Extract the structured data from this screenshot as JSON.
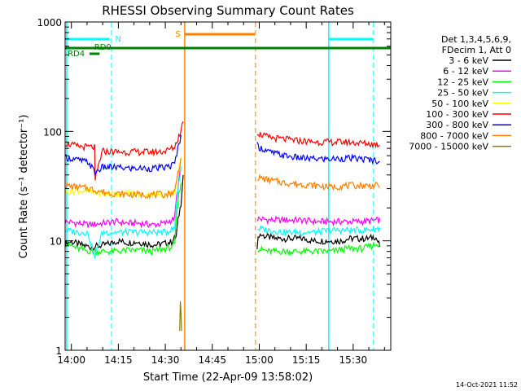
{
  "chart_data": {
    "type": "line",
    "title": "RHESSI Observing Summary Count Rates",
    "xlabel": "Start Time (22-Apr-09 13:58:02)",
    "ylabel": "Count Rate (s⁻¹ detector⁻¹)",
    "x_unit": "minutes since 13:58:02",
    "xlim": [
      0,
      104
    ],
    "ylim": [
      1,
      1000
    ],
    "yscale": "log",
    "x_ticks": [
      "14:00",
      "14:15",
      "14:30",
      "14:45",
      "15:00",
      "15:15",
      "15:30"
    ],
    "x_tick_values": [
      2,
      17,
      32,
      47,
      62,
      77,
      92
    ],
    "y_ticks": [
      "1",
      "10",
      "100",
      "1000"
    ],
    "y_tick_values": [
      1,
      10,
      100,
      1000
    ],
    "legend_header": [
      "Det 1,3,4,5,6,9,",
      "FDecim 1, Att 0"
    ],
    "legend_position": "right",
    "data_gap": [
      38,
      61
    ],
    "series": [
      {
        "name": "3 - 6 keV",
        "color": "#000000",
        "x": [
          0,
          2,
          5,
          8,
          11,
          14,
          17,
          20,
          23,
          26,
          29,
          32,
          34,
          35.5,
          37,
          37.7,
          61.3,
          62,
          64,
          67,
          70,
          73,
          76,
          79,
          82,
          85,
          88,
          91,
          94,
          97,
          99,
          100.5
        ],
        "y": [
          9.5,
          9.8,
          9.2,
          8.8,
          9.0,
          9.4,
          10.0,
          9.6,
          9.8,
          9.4,
          9.2,
          9.5,
          9.8,
          11,
          22,
          40,
          9.0,
          11.5,
          11,
          10.5,
          10.5,
          10.5,
          10.5,
          10,
          10,
          10,
          10,
          10.5,
          10.5,
          10.5,
          11,
          9
        ]
      },
      {
        "name": "6 - 12 keV",
        "color": "#ff00ff",
        "x": [
          0,
          4,
          8,
          12,
          16,
          20,
          24,
          28,
          32,
          35,
          37,
          61.5,
          65,
          70,
          75,
          80,
          85,
          90,
          95,
          100.5
        ],
        "y": [
          15,
          14.5,
          14,
          14.5,
          15,
          14.5,
          14.5,
          14,
          14.5,
          16,
          45,
          16,
          15.5,
          15.5,
          15.5,
          15,
          15,
          15,
          15,
          15.5
        ]
      },
      {
        "name": "12 - 25 keV",
        "color": "#00ff00",
        "x": [
          0,
          4,
          8,
          12,
          16,
          20,
          24,
          28,
          32,
          35,
          37,
          61.5,
          65,
          70,
          75,
          80,
          85,
          90,
          95,
          100.5
        ],
        "y": [
          9.5,
          8.5,
          8,
          8,
          8,
          8.2,
          8.2,
          8.0,
          8.5,
          9,
          35,
          8.5,
          8,
          8,
          8,
          8,
          8,
          8.5,
          8.5,
          9.5
        ]
      },
      {
        "name": "25 - 50 keV",
        "color": "#00ffff",
        "x": [
          0,
          4,
          7,
          9.5,
          12,
          16,
          20,
          24,
          28,
          32,
          35,
          37,
          61.5,
          65,
          70,
          75,
          80,
          85,
          90,
          95,
          100.5
        ],
        "y": [
          12.5,
          12,
          12,
          7,
          12,
          12,
          12,
          12,
          12,
          12,
          13,
          45,
          13,
          12.5,
          12,
          12,
          12,
          12.5,
          12.5,
          12.5,
          13
        ]
      },
      {
        "name": "50 - 100 keV",
        "color": "#ffff00",
        "x": [
          0,
          4,
          8,
          12,
          16,
          20,
          24,
          28,
          32,
          35,
          37
        ],
        "y": [
          28,
          29,
          28,
          27,
          27,
          27,
          26.5,
          26.5,
          26.5,
          28,
          55
        ]
      },
      {
        "name": "100 - 300 keV",
        "color": "#ff0000",
        "x": [
          0,
          4,
          8,
          9.4,
          9.6,
          12,
          16,
          20,
          24,
          28,
          32,
          35,
          37,
          37.7,
          61.3,
          62,
          65,
          70,
          75,
          80,
          85,
          90,
          95,
          100.5
        ],
        "y": [
          78,
          73,
          72,
          72,
          35,
          66,
          65,
          65,
          65,
          65,
          66,
          72,
          100,
          130,
          100,
          95,
          88,
          85,
          82,
          80,
          80,
          80,
          78,
          76
        ]
      },
      {
        "name": "300 - 800 keV",
        "color": "#0000ff",
        "x": [
          0,
          4,
          7.5,
          9.5,
          12,
          16,
          20,
          24,
          28,
          32,
          35,
          37,
          61.3,
          62,
          65,
          70,
          75,
          80,
          85,
          90,
          95,
          100.5
        ],
        "y": [
          58,
          55,
          52,
          42,
          47,
          47,
          46,
          46,
          46,
          47,
          50,
          90,
          75,
          72,
          65,
          60,
          57,
          56,
          56,
          57,
          56,
          54
        ]
      },
      {
        "name": "800 - 7000 keV",
        "color": "#ff8000",
        "x": [
          0,
          4,
          8,
          12,
          16,
          20,
          24,
          28,
          32,
          35,
          37,
          61.5,
          65,
          70,
          75,
          80,
          85,
          90,
          95,
          100.5
        ],
        "y": [
          32,
          31,
          30,
          28,
          27,
          26.5,
          26.5,
          26.5,
          26.5,
          28,
          55,
          38,
          36,
          34,
          33,
          32,
          31,
          32,
          32,
          32
        ]
      },
      {
        "name": "7000 - 15000 keV",
        "color": "#808000",
        "x": [
          36.6,
          36.8,
          37,
          37.2
        ],
        "y": [
          1.5,
          2.8,
          2.2,
          1.5
        ]
      }
    ],
    "overlays": {
      "N_label": "N",
      "S_label": "S",
      "RD0_label": "RD0",
      "RD4_label": "RD4"
    }
  },
  "footer": {
    "date": "14-Oct-2021 11:52"
  }
}
